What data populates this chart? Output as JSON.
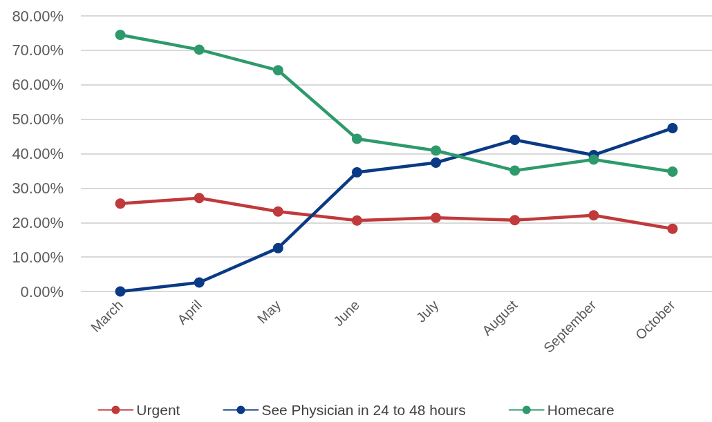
{
  "chart_data": {
    "type": "line",
    "categories": [
      "March",
      "April",
      "May",
      "June",
      "July",
      "August",
      "September",
      "October"
    ],
    "series": [
      {
        "name": "Urgent",
        "color": "#c0393b",
        "values": [
          25.5,
          27.1,
          23.2,
          20.6,
          21.4,
          20.7,
          22.1,
          18.2
        ]
      },
      {
        "name": "See Physician in 24 to 48 hours",
        "color": "#0a3a85",
        "values": [
          0,
          2.6,
          12.6,
          34.6,
          37.4,
          44.0,
          39.6,
          47.4
        ]
      },
      {
        "name": "Homecare",
        "color": "#2e9a6c",
        "values": [
          74.5,
          70.2,
          64.2,
          44.3,
          40.9,
          35.1,
          38.3,
          34.8
        ]
      }
    ],
    "ylim": [
      0,
      80
    ],
    "yticks": [
      {
        "value": 0,
        "label": "0.00%"
      },
      {
        "value": 10,
        "label": "10.00%"
      },
      {
        "value": 20,
        "label": "20.00%"
      },
      {
        "value": 30,
        "label": "30.00%"
      },
      {
        "value": 40,
        "label": "40.00%"
      },
      {
        "value": 50,
        "label": "50.00%"
      },
      {
        "value": 60,
        "label": "60.00%"
      },
      {
        "value": 70,
        "label": "70.00%"
      },
      {
        "value": 80,
        "label": "80.00%"
      }
    ],
    "grid": "y",
    "legend": "bottom",
    "marker": "circle",
    "line_style": "solid"
  }
}
